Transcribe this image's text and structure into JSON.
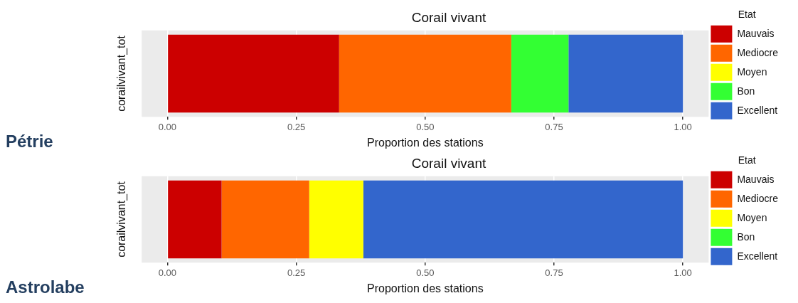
{
  "chart_data": [
    {
      "type": "bar",
      "orientation": "horizontal",
      "stacked": true,
      "title": "Corail vivant",
      "xlabel": "Proportion des stations",
      "ylabel": "corailvivant_tot",
      "legend_title": "Etat",
      "legend": "right",
      "grid": "x",
      "annotations": [
        "Pétrie"
      ],
      "categories": [
        null
      ],
      "xlim": [
        -0.05,
        1.05
      ],
      "xticks": [
        {
          "value": 0,
          "label": "0.00"
        },
        {
          "value": 0.25,
          "label": "0.25"
        },
        {
          "value": 0.5,
          "label": "0.50"
        },
        {
          "value": 0.75,
          "label": "0.75"
        },
        {
          "value": 1,
          "label": "1.00"
        }
      ],
      "series": [
        {
          "name": "Mauvais",
          "color": "#cc0000",
          "values": [
            0.333
          ]
        },
        {
          "name": "Mediocre",
          "color": "#ff6600",
          "values": [
            0.334
          ]
        },
        {
          "name": "Moyen",
          "color": "#ffff00",
          "values": [
            0
          ]
        },
        {
          "name": "Bon",
          "color": "#33ff33",
          "values": [
            0.111
          ]
        },
        {
          "name": "Excellent",
          "color": "#3366cc",
          "values": [
            0.222
          ]
        }
      ]
    },
    {
      "type": "bar",
      "orientation": "horizontal",
      "stacked": true,
      "title": "Corail vivant",
      "xlabel": "Proportion des stations",
      "ylabel": "corailvivant_tot",
      "legend_title": "Etat",
      "legend": "right",
      "grid": "x",
      "annotations": [
        "Astrolabe"
      ],
      "categories": [
        null
      ],
      "xlim": [
        -0.05,
        1.05
      ],
      "xticks": [
        {
          "value": 0,
          "label": "0.00"
        },
        {
          "value": 0.25,
          "label": "0.25"
        },
        {
          "value": 0.5,
          "label": "0.50"
        },
        {
          "value": 0.75,
          "label": "0.75"
        },
        {
          "value": 1,
          "label": "1.00"
        }
      ],
      "series": [
        {
          "name": "Mauvais",
          "color": "#cc0000",
          "values": [
            0.105
          ]
        },
        {
          "name": "Mediocre",
          "color": "#ff6600",
          "values": [
            0.17
          ]
        },
        {
          "name": "Moyen",
          "color": "#ffff00",
          "values": [
            0.105
          ]
        },
        {
          "name": "Bon",
          "color": "#33ff33",
          "values": [
            0
          ]
        },
        {
          "name": "Excellent",
          "color": "#3366cc",
          "values": [
            0.62
          ]
        }
      ]
    }
  ]
}
